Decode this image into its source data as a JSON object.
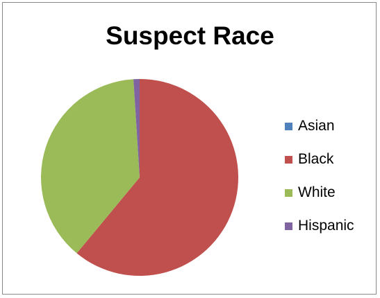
{
  "chart_data": {
    "type": "pie",
    "title": "Suspect Race",
    "legend_position": "right",
    "categories": [
      "Asian",
      "Black",
      "White",
      "Hispanic"
    ],
    "values": [
      0,
      61,
      38,
      1
    ],
    "colors": [
      "#4f81bd",
      "#c0504d",
      "#9bbb59",
      "#8064a2"
    ],
    "legend_labels": [
      "Asian",
      " Black",
      " White",
      "Hispanic"
    ]
  }
}
